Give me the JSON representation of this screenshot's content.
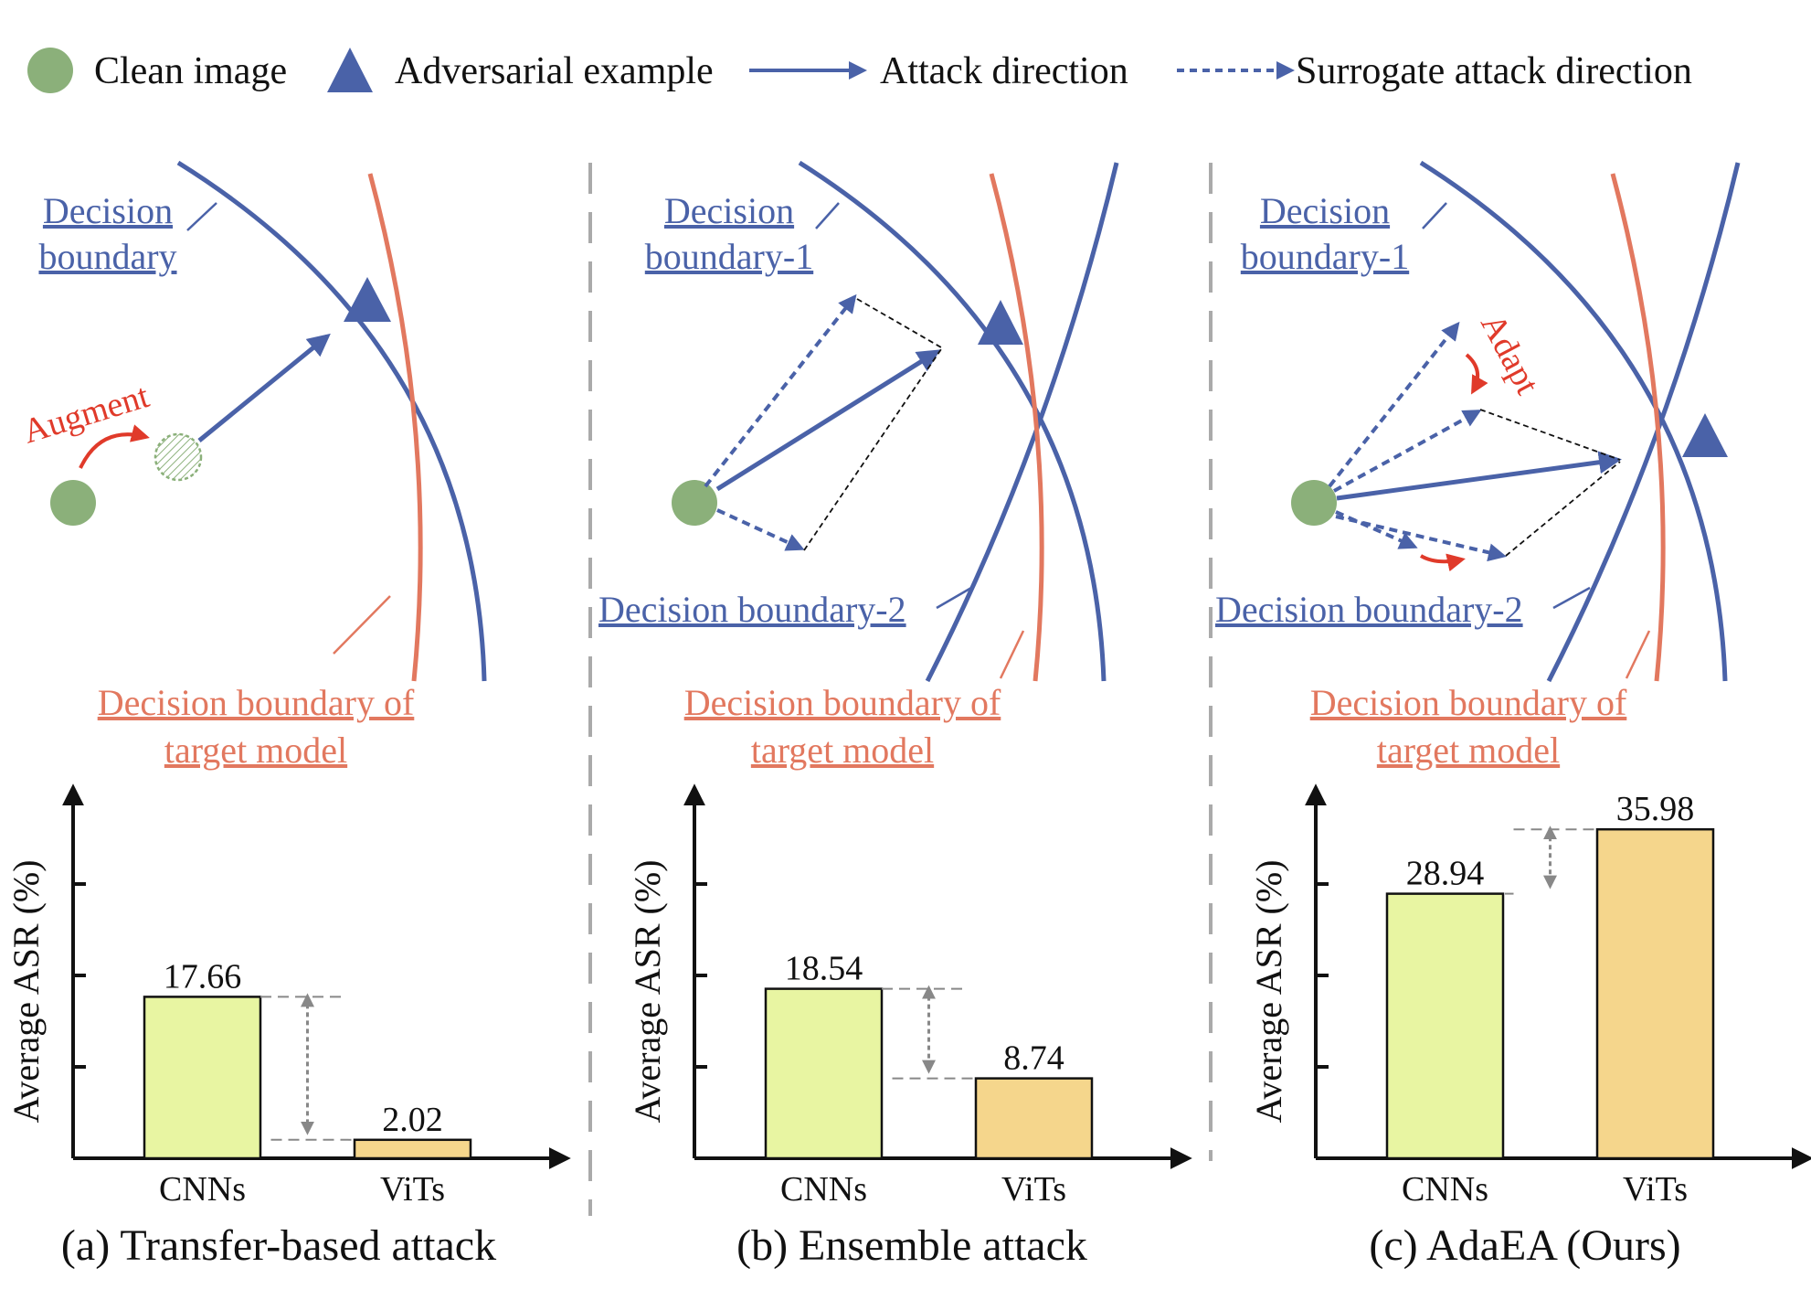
{
  "legend": {
    "clean_image": "Clean image",
    "adversarial_example": "Adversarial example",
    "attack_direction": "Attack direction",
    "surrogate_attack_direction": "Surrogate attack direction"
  },
  "panel_a": {
    "boundary_label_line1": "Decision",
    "boundary_label_line2": "boundary",
    "augment_label": "Augment",
    "target_label_line1": "Decision boundary of",
    "target_label_line2": "target model",
    "caption": "(a) Transfer-based attack"
  },
  "panel_b": {
    "boundary1_label_line1": "Decision",
    "boundary1_label_line2": "boundary-1",
    "boundary2_label": "Decision boundary-2",
    "target_label_line1": "Decision boundary of",
    "target_label_line2": "target model",
    "caption": "(b) Ensemble attack"
  },
  "panel_c": {
    "boundary1_label_line1": "Decision",
    "boundary1_label_line2": "boundary-1",
    "boundary2_label": "Decision boundary-2",
    "adapt_label": "Adapt",
    "target_label_line1": "Decision boundary of",
    "target_label_line2": "target model",
    "caption": "(c) AdaEA (Ours)"
  },
  "colors": {
    "blue": "#4a62a8",
    "orange": "#e2785f",
    "red": "#e03a2a",
    "green": "#8bb07a",
    "cnn_bar": "#e8f5a2",
    "vit_bar": "#f5d68c"
  },
  "chart_data": [
    {
      "type": "bar",
      "categories": [
        "CNNs",
        "ViTs"
      ],
      "values": [
        17.66,
        2.02
      ],
      "value_labels": [
        "17.66",
        "2.02"
      ],
      "ylabel": "Average ASR (%)",
      "ylim": [
        0,
        40
      ],
      "grid": false
    },
    {
      "type": "bar",
      "categories": [
        "CNNs",
        "ViTs"
      ],
      "values": [
        18.54,
        8.74
      ],
      "value_labels": [
        "18.54",
        "8.74"
      ],
      "ylabel": "Average ASR (%)",
      "ylim": [
        0,
        40
      ],
      "grid": false
    },
    {
      "type": "bar",
      "categories": [
        "CNNs",
        "ViTs"
      ],
      "values": [
        28.94,
        35.98
      ],
      "value_labels": [
        "28.94",
        "35.98"
      ],
      "ylabel": "Average ASR (%)",
      "ylim": [
        0,
        40
      ],
      "grid": false
    }
  ]
}
